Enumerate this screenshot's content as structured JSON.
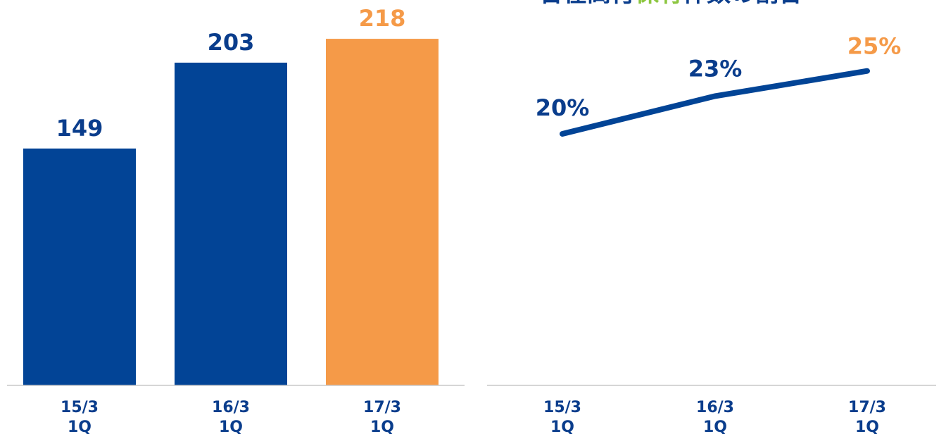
{
  "colors": {
    "navy": "#024496",
    "orange": "#f59a48",
    "green": "#8cc63f",
    "axis": "#c8c8c8"
  },
  "title": {
    "parts": [
      {
        "text": "合在高付",
        "color": "#0a3d8c"
      },
      {
        "text": "保有",
        "color": "#8cc63f"
      },
      {
        "text": "件数の割合",
        "color": "#0a3d8c"
      }
    ]
  },
  "chart_data": [
    {
      "type": "bar",
      "categories": [
        [
          "15/3",
          "1Q"
        ],
        [
          "16/3",
          "1Q"
        ],
        [
          "17/3",
          "1Q"
        ]
      ],
      "values": [
        149,
        203,
        218
      ],
      "value_labels": [
        "149",
        "203",
        "218"
      ],
      "bar_colors": [
        "#024496",
        "#024496",
        "#f59a48"
      ],
      "label_colors": [
        "#0a3d8c",
        "#0a3d8c",
        "#f59a48"
      ],
      "ylim": [
        0,
        230
      ],
      "grid": false
    },
    {
      "type": "line",
      "categories": [
        [
          "15/3",
          "1Q"
        ],
        [
          "16/3",
          "1Q"
        ],
        [
          "17/3",
          "1Q"
        ]
      ],
      "values": [
        20,
        23,
        25
      ],
      "value_labels": [
        "20%",
        "23%",
        "25%"
      ],
      "label_colors": [
        "#0a3d8c",
        "#0a3d8c",
        "#f59a48"
      ],
      "line_color": "#024496",
      "ylim": [
        0,
        27
      ],
      "grid": false
    }
  ]
}
